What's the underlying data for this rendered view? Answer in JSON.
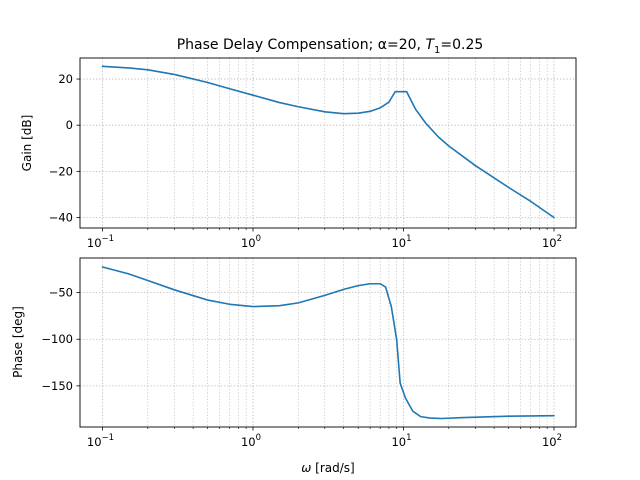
{
  "chart_data": [
    {
      "type": "line",
      "title_prefix": "Phase Delay Compensation; α=20, ",
      "title_sym": "T",
      "title_sub": "1",
      "title_suffix": "=0.25",
      "xlabel": "",
      "ylabel": "Gain [dB]",
      "xscale": "log",
      "xlim": [
        0.1,
        100
      ],
      "ylim": [
        -40,
        25
      ],
      "x_ticks": [
        0.1,
        1,
        10,
        100
      ],
      "x_tick_labels": [
        {
          "base": "10",
          "exp": "−1"
        },
        {
          "base": "10",
          "exp": "0"
        },
        {
          "base": "10",
          "exp": "1"
        },
        {
          "base": "10",
          "exp": "2"
        }
      ],
      "y_ticks": [
        20,
        0,
        -20,
        -40
      ],
      "y_tick_labels": [
        "20",
        "0",
        "−20",
        "−40"
      ],
      "grid": true,
      "series": [
        {
          "color": "#1f77b4",
          "x": [
            0.1,
            0.15,
            0.2,
            0.3,
            0.5,
            0.7,
            1.0,
            1.5,
            2.0,
            3.0,
            4.0,
            5.0,
            6.0,
            7.0,
            8.0,
            8.8,
            9.5,
            10.5,
            12.0,
            14.0,
            17.0,
            20.0,
            30.0,
            50.0,
            70.0,
            100.0
          ],
          "y": [
            25.5,
            24.8,
            24.0,
            22.0,
            18.5,
            15.8,
            13.0,
            9.8,
            8.0,
            5.8,
            5.0,
            5.2,
            6.0,
            7.5,
            10.0,
            14.5,
            14.5,
            14.5,
            7.0,
            1.0,
            -5.0,
            -9.0,
            -17.5,
            -27.0,
            -33.0,
            -40.0
          ]
        }
      ]
    },
    {
      "type": "line",
      "title": "",
      "xlabel_sym": "ω",
      "xlabel_rest": " [rad/s]",
      "ylabel": "Phase [deg]",
      "xscale": "log",
      "xlim": [
        0.1,
        100
      ],
      "ylim": [
        -185,
        -22
      ],
      "x_ticks": [
        0.1,
        1,
        10,
        100
      ],
      "x_tick_labels": [
        {
          "base": "10",
          "exp": "−1"
        },
        {
          "base": "10",
          "exp": "0"
        },
        {
          "base": "10",
          "exp": "1"
        },
        {
          "base": "10",
          "exp": "2"
        }
      ],
      "y_ticks": [
        -50,
        -100,
        -150
      ],
      "y_tick_labels": [
        "−50",
        "−100",
        "−150"
      ],
      "grid": true,
      "series": [
        {
          "color": "#1f77b4",
          "x": [
            0.1,
            0.15,
            0.2,
            0.3,
            0.5,
            0.7,
            1.0,
            1.5,
            2.0,
            3.0,
            4.0,
            5.0,
            6.0,
            7.0,
            7.6,
            8.3,
            9.0,
            9.5,
            10.3,
            11.5,
            13.0,
            15.0,
            18.0,
            25.0,
            50.0,
            100.0
          ],
          "y": [
            -22.5,
            -30.0,
            -37.0,
            -47.0,
            -58.0,
            -62.5,
            -65.0,
            -64.0,
            -61.0,
            -53.0,
            -46.5,
            -42.5,
            -40.5,
            -40.5,
            -44.0,
            -65.0,
            -100.0,
            -147.0,
            -163.0,
            -177.0,
            -183.0,
            -184.5,
            -185.0,
            -184.0,
            -182.5,
            -182.0
          ]
        }
      ]
    }
  ]
}
